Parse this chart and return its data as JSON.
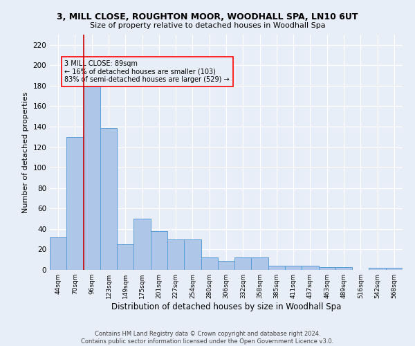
{
  "title1": "3, MILL CLOSE, ROUGHTON MOOR, WOODHALL SPA, LN10 6UT",
  "title2": "Size of property relative to detached houses in Woodhall Spa",
  "xlabel": "Distribution of detached houses by size in Woodhall Spa",
  "ylabel": "Number of detached properties",
  "categories": [
    "44sqm",
    "70sqm",
    "96sqm",
    "123sqm",
    "149sqm",
    "175sqm",
    "201sqm",
    "227sqm",
    "254sqm",
    "280sqm",
    "306sqm",
    "332sqm",
    "358sqm",
    "385sqm",
    "411sqm",
    "437sqm",
    "463sqm",
    "489sqm",
    "516sqm",
    "542sqm",
    "568sqm"
  ],
  "values": [
    32,
    130,
    179,
    139,
    25,
    50,
    38,
    30,
    30,
    12,
    9,
    12,
    12,
    4,
    4,
    4,
    3,
    3,
    0,
    2,
    2
  ],
  "bar_color": "#aec6e8",
  "bar_edge_color": "#5b9bd5",
  "vline_x": 1.5,
  "vline_color": "#cc0000",
  "annotation_text": "3 MILL CLOSE: 89sqm\n← 16% of detached houses are smaller (103)\n83% of semi-detached houses are larger (529) →",
  "ylim": [
    0,
    230
  ],
  "yticks": [
    0,
    20,
    40,
    60,
    80,
    100,
    120,
    140,
    160,
    180,
    200,
    220
  ],
  "background_color": "#e8eef8",
  "grid_color": "#ffffff",
  "footer": "Contains HM Land Registry data © Crown copyright and database right 2024.\nContains public sector information licensed under the Open Government Licence v3.0."
}
